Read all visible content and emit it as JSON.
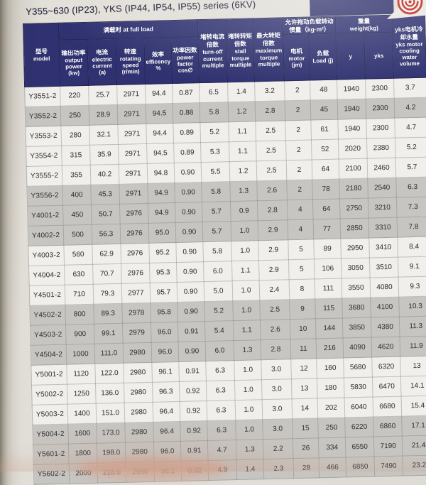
{
  "page": {
    "title": "Y355~630 (IP23), YKS (IP44, IP54, IP55) series (6KV)"
  },
  "colors": {
    "header_navy": "#2f3170",
    "banner_navy": "#2c2e6a",
    "logo_red": "#c0231b",
    "row_light": "#f1efeb",
    "row_shaded": "#c7c5c1"
  },
  "logo": {
    "icon": "red-ring-emblem"
  },
  "table": {
    "groups": {
      "full_load": {
        "zh": "满载时",
        "en": "at full load"
      },
      "inertia": {
        "zh": "允许拖动负载转动惯量（kg·m²）",
        "en": ""
      },
      "weight": {
        "zh": "重量",
        "en": "weight(kg)"
      }
    },
    "columns": [
      {
        "zh": "型号",
        "en": "model"
      },
      {
        "zh": "输出功率",
        "en": "output power (kw)"
      },
      {
        "zh": "电流",
        "en": "electric current (a)"
      },
      {
        "zh": "转速",
        "en": "rotating speed (r/min)"
      },
      {
        "zh": "效率",
        "en": "efficency %"
      },
      {
        "zh": "功率因数",
        "en": "power factor cos∅"
      },
      {
        "zh": "堵转电流倍数",
        "en": "turn-off current multiple"
      },
      {
        "zh": "堵转转矩倍数",
        "en": "stall torque multiple"
      },
      {
        "zh": "最大转矩倍数",
        "en": "maximum torque multiple"
      },
      {
        "zh": "电机",
        "en": "motor (jm)"
      },
      {
        "zh": "负载",
        "en": "Load (j)"
      },
      {
        "zh": "",
        "en": "y"
      },
      {
        "zh": "",
        "en": "yks"
      },
      {
        "zh": "yks电机冷却水量",
        "en": "yks motor cooling water volume"
      }
    ],
    "rows": [
      [
        "Y3551-2",
        "220",
        "25.7",
        "2971",
        "94.4",
        "0.87",
        "6.5",
        "1.4",
        "3.2",
        "2",
        "48",
        "1940",
        "2300",
        "3.7"
      ],
      [
        "Y3552-2",
        "250",
        "28.9",
        "2971",
        "94.5",
        "0.88",
        "5.8",
        "1.2",
        "2.8",
        "2",
        "45",
        "1940",
        "2300",
        "4.2"
      ],
      [
        "Y3553-2",
        "280",
        "32.1",
        "2971",
        "94.4",
        "0.89",
        "5.2",
        "1.1",
        "2.5",
        "2",
        "61",
        "1940",
        "2300",
        "4.7"
      ],
      [
        "Y3554-2",
        "315",
        "35.9",
        "2971",
        "94.5",
        "0.89",
        "5.3",
        "1.1",
        "2.5",
        "2",
        "52",
        "2020",
        "2380",
        "5.2"
      ],
      [
        "Y3555-2",
        "355",
        "40.2",
        "2971",
        "94.8",
        "0.90",
        "5.5",
        "1.2",
        "2.5",
        "2",
        "64",
        "2100",
        "2460",
        "5.7"
      ],
      [
        "Y3556-2",
        "400",
        "45.3",
        "2971",
        "94.9",
        "0.90",
        "5.8",
        "1.3",
        "2.6",
        "2",
        "78",
        "2180",
        "2540",
        "6.3"
      ],
      [
        "Y4001-2",
        "450",
        "50.7",
        "2976",
        "94.9",
        "0.90",
        "5.7",
        "0.9",
        "2.8",
        "4",
        "64",
        "2750",
        "3210",
        "7.3"
      ],
      [
        "Y4002-2",
        "500",
        "56.3",
        "2976",
        "95.0",
        "0.90",
        "5.7",
        "1.0",
        "2.9",
        "4",
        "77",
        "2850",
        "3310",
        "7.8"
      ],
      [
        "Y4003-2",
        "560",
        "62.9",
        "2976",
        "95.2",
        "0.90",
        "5.8",
        "1.0",
        "2.9",
        "5",
        "89",
        "2950",
        "3410",
        "8.4"
      ],
      [
        "Y4004-2",
        "630",
        "70.7",
        "2976",
        "95.3",
        "0.90",
        "6.0",
        "1.1",
        "2.9",
        "5",
        "106",
        "3050",
        "3510",
        "9.1"
      ],
      [
        "Y4501-2",
        "710",
        "79.3",
        "2977",
        "95.7",
        "0.90",
        "5.0",
        "1.0",
        "2.4",
        "8",
        "111",
        "3550",
        "4080",
        "9.3"
      ],
      [
        "Y4502-2",
        "800",
        "89.3",
        "2978",
        "95.8",
        "0.90",
        "5.2",
        "1.0",
        "2.5",
        "9",
        "115",
        "3680",
        "4100",
        "10.3"
      ],
      [
        "Y4503-2",
        "900",
        "99.1",
        "2979",
        "96.0",
        "0.91",
        "5.4",
        "1.1",
        "2.6",
        "10",
        "144",
        "3850",
        "4380",
        "11.3"
      ],
      [
        "Y4504-2",
        "1000",
        "111.0",
        "2980",
        "96.0",
        "0.90",
        "6.0",
        "1.3",
        "2.8",
        "11",
        "216",
        "4090",
        "4620",
        "11.9"
      ],
      [
        "Y5001-2",
        "1120",
        "122.0",
        "2980",
        "96.1",
        "0.91",
        "6.3",
        "1.0",
        "3.0",
        "12",
        "160",
        "5680",
        "6320",
        "13"
      ],
      [
        "Y5002-2",
        "1250",
        "136.0",
        "2980",
        "96.3",
        "0.92",
        "6.3",
        "1.0",
        "3.0",
        "13",
        "180",
        "5830",
        "6470",
        "14.1"
      ],
      [
        "Y5003-2",
        "1400",
        "151.0",
        "2980",
        "96.4",
        "0.92",
        "6.3",
        "1.0",
        "3.0",
        "14",
        "202",
        "6040",
        "6680",
        "15.4"
      ],
      [
        "Y5004-2",
        "1600",
        "173.0",
        "2980",
        "96.4",
        "0.92",
        "6.3",
        "1.0",
        "3.0",
        "15",
        "250",
        "6220",
        "6860",
        "17.1"
      ],
      [
        "Y5601-2",
        "1800",
        "198.0",
        "2980",
        "96.0",
        "0.91",
        "4.7",
        "1.3",
        "2.2",
        "26",
        "334",
        "6550",
        "7190",
        "21.4"
      ],
      [
        "Y5602-2",
        "2000",
        "218.0",
        "2980",
        "96.1",
        "0.92",
        "4.9",
        "1.4",
        "2.3",
        "28",
        "466",
        "6850",
        "7490",
        "23.2"
      ]
    ]
  }
}
